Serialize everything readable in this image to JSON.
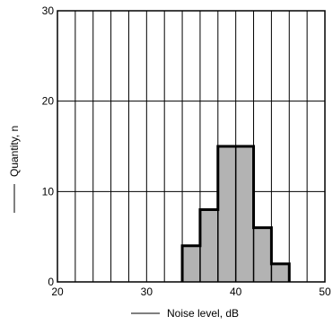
{
  "chart_data": {
    "type": "bar",
    "subtype": "histogram",
    "xlabel": "Noise level, dB",
    "ylabel": "Quantity, n",
    "xlim": [
      20,
      50
    ],
    "ylim": [
      0,
      30
    ],
    "x_ticks": [
      20,
      30,
      40,
      50
    ],
    "y_ticks": [
      0,
      10,
      20,
      30
    ],
    "x_minor_step": 2,
    "y_grid_lines": [
      10,
      20
    ],
    "grid": true,
    "bin_width": 2,
    "bins": [
      {
        "x0": 34,
        "x1": 36,
        "value": 4
      },
      {
        "x0": 36,
        "x1": 38,
        "value": 8
      },
      {
        "x0": 38,
        "x1": 40,
        "value": 15
      },
      {
        "x0": 40,
        "x1": 42,
        "value": 15
      },
      {
        "x0": 42,
        "x1": 44,
        "value": 6
      },
      {
        "x0": 44,
        "x1": 46,
        "value": 2
      }
    ],
    "bar_fill": "#b3b3b3",
    "bar_stroke": "#000000"
  }
}
